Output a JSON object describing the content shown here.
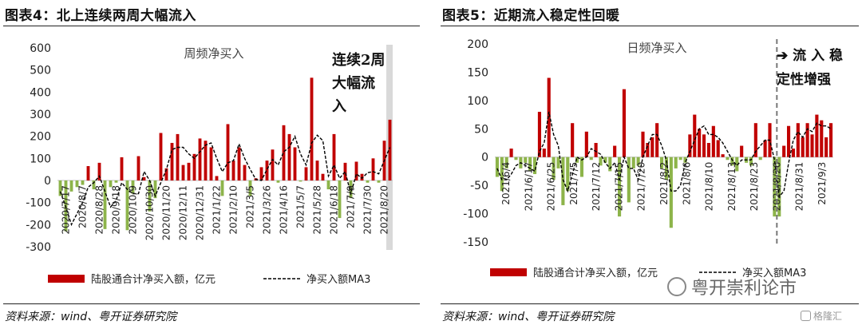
{
  "left": {
    "heading": "图表4：北上连续两周大幅流入",
    "source": "资料来源：wind、粤开证券研究院",
    "annotation": [
      "连续2周",
      "大幅流",
      "入"
    ],
    "chart_data": {
      "type": "bar",
      "title": "周频净买入",
      "ylim": [
        -300,
        600
      ],
      "yticks": [
        600,
        500,
        400,
        300,
        200,
        100,
        0,
        -100,
        -200,
        -300
      ],
      "x_tick_labels": [
        "2020/7/17",
        "2020/8/7",
        "2020/8/28",
        "2020/9/18",
        "2020/10/9",
        "2020/10/30",
        "2020/11/20",
        "2020/12/11",
        "2020/12/31",
        "2021/1/22",
        "2021/2/10",
        "2021/3/5",
        "2021/3/26",
        "2021/4/16",
        "2021/5/7",
        "2021/5/28",
        "2021/6/18",
        "2021/7/9",
        "2021/7/30",
        "2021/8/20"
      ],
      "legend": [
        "陆股通合计净买入额，亿元",
        "净买入额MA3"
      ],
      "series": [
        {
          "name": "陆股通合计净买入额，亿元",
          "values": [
            -70,
            -230,
            -50,
            -30,
            -20,
            65,
            -40,
            80,
            -220,
            -30,
            -10,
            105,
            -225,
            -60,
            110,
            15,
            -140,
            -80,
            215,
            55,
            170,
            210,
            70,
            80,
            120,
            190,
            180,
            150,
            20,
            -70,
            255,
            90,
            150,
            70,
            -70,
            10,
            60,
            90,
            140,
            -10,
            250,
            210,
            150,
            -5,
            60,
            465,
            90,
            30,
            -40,
            210,
            -170,
            80,
            -80,
            85,
            30,
            -10,
            100,
            -10,
            180,
            275
          ]
        },
        {
          "name": "净买入额MA3",
          "values": [
            -50,
            -120,
            -200,
            -150,
            -100,
            -30,
            -10,
            20,
            -50,
            -120,
            -90,
            -10,
            -40,
            -60,
            -60,
            40,
            0,
            -70,
            -10,
            50,
            140,
            150,
            150,
            120,
            100,
            130,
            160,
            170,
            100,
            40,
            80,
            90,
            165,
            100,
            50,
            5,
            0,
            50,
            95,
            70,
            130,
            150,
            200,
            120,
            70,
            170,
            205,
            180,
            20,
            70,
            10,
            40,
            -60,
            30,
            10,
            35,
            40,
            30,
            90,
            150
          ]
        }
      ],
      "colors": {
        "bars_pos": "#C00000",
        "bars_neg": "#8DB44A",
        "ma": "#000000",
        "highlight": "#D9D9D9"
      }
    }
  },
  "right": {
    "heading": "图表5：近期流入稳定性回暖",
    "source": "资料来源：wind、粤开证券研究院",
    "annotation": [
      "➔ 流 入 稳",
      "定性增强"
    ],
    "chart_data": {
      "type": "bar",
      "title": "日频净买入",
      "ylim": [
        -150,
        200
      ],
      "yticks": [
        200,
        150,
        100,
        50,
        0,
        -50,
        -100,
        -150
      ],
      "x_tick_labels": [
        "2021/6/4",
        "2021/6/17",
        "2021/6/25",
        "2021/7/5",
        "2021/7/12",
        "2021/7/15",
        "2021/7/20",
        "2021/8/2",
        "2021/8/6",
        "2021/8/10",
        "2021/8/13",
        "2021/8/23",
        "2021/8/26",
        "2021/8/31",
        "2021/9/3"
      ],
      "legend": [
        "陆股通合计净买入额，亿元",
        "净买入额MA3"
      ],
      "series": [
        {
          "name": "陆股通合计净买入额，亿元",
          "values": [
            -35,
            -60,
            -20,
            15,
            -5,
            -20,
            -10,
            -25,
            -30,
            80,
            15,
            140,
            -40,
            -20,
            -85,
            -60,
            60,
            -10,
            -35,
            45,
            -5,
            25,
            -15,
            -10,
            -25,
            20,
            -105,
            120,
            -80,
            -20,
            -15,
            45,
            25,
            35,
            60,
            -20,
            -40,
            -125,
            -20,
            -5,
            -10,
            40,
            75,
            50,
            40,
            25,
            55,
            30,
            5,
            -5,
            -15,
            -25,
            20,
            -10,
            -15,
            60,
            -5,
            30,
            60,
            -105,
            -105,
            20,
            55,
            15,
            60,
            35,
            60,
            40,
            75,
            65,
            35,
            60
          ]
        },
        {
          "name": "净买入额MA3",
          "values": [
            -20,
            -40,
            -40,
            -30,
            -15,
            -10,
            -15,
            -20,
            -25,
            10,
            25,
            80,
            40,
            20,
            -40,
            -60,
            -30,
            0,
            -5,
            0,
            15,
            10,
            5,
            -10,
            -20,
            -10,
            -40,
            0,
            -20,
            -20,
            -40,
            0,
            20,
            40,
            40,
            20,
            -5,
            -60,
            -60,
            -50,
            -10,
            10,
            30,
            50,
            55,
            40,
            40,
            35,
            25,
            10,
            -5,
            -15,
            -5,
            -5,
            -5,
            10,
            20,
            30,
            30,
            -5,
            -70,
            -60,
            -10,
            30,
            45,
            35,
            50,
            45,
            60,
            55,
            55,
            50
          ]
        }
      ],
      "dashed_marker_after_index": 60,
      "colors": {
        "bars_pos": "#C00000",
        "bars_neg": "#8DB44A",
        "ma": "#000000",
        "divider": "#777777"
      }
    }
  },
  "watermark": {
    "brand": "粤开崇利论市",
    "badge": "格隆汇"
  }
}
